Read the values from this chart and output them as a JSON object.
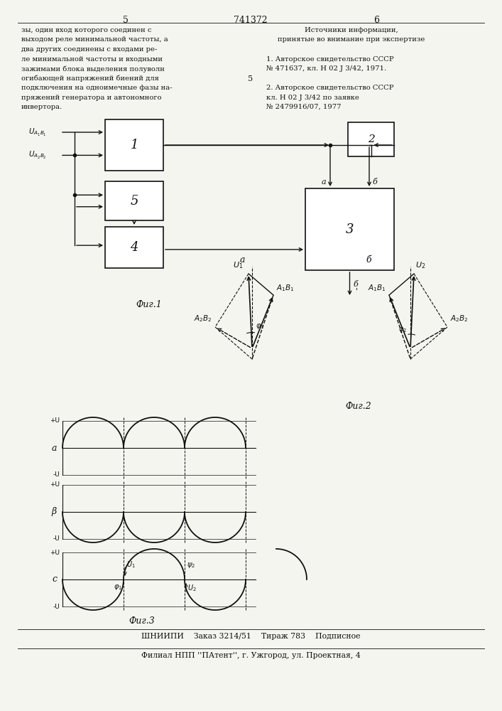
{
  "page_num_left": "5",
  "page_num_center": "741372",
  "page_num_right": "6",
  "left_text_lines": [
    "зы, один вход которого соединен с",
    "выходом реле минимальной частоты, а",
    "два других соединены с входами ре-",
    "ле минимальной частоты и входными",
    "зажимами блока выделения полуволн",
    "огибающей напряжений биений для",
    "подключения на одноимечные фазы на-",
    "пряжений генератора и автономного",
    "инвертора."
  ],
  "right_col_title": "Источники информации,",
  "right_col_sub": "принятые во внимание при экспертизе",
  "right_ref1_line1": "1. Авторское свидетельство СССР",
  "right_ref1_line2": "№ 471637, кл. Н 02 J 3/42, 1971.",
  "mid_number": "5",
  "right_ref2_line1": "2. Авторское свидетельство СССР",
  "right_ref2_line2": "кл. Н 02 J 3/42 по заявке",
  "right_ref2_line3": "№ 2479916/07, 1977",
  "fig1_caption": "Фиг.1",
  "fig2_caption": "Фиг.2",
  "fig3_caption": "Фиг.3",
  "bottom_text1": "ШНИИПИ    Заказ 3214/51    Тираж 783    Подписное",
  "bottom_text2": "Филиал НПП ''ПАтент'', г. Ужгород, ул. Проектная, 4",
  "bg": "#f5f5f0",
  "fg": "#111111"
}
